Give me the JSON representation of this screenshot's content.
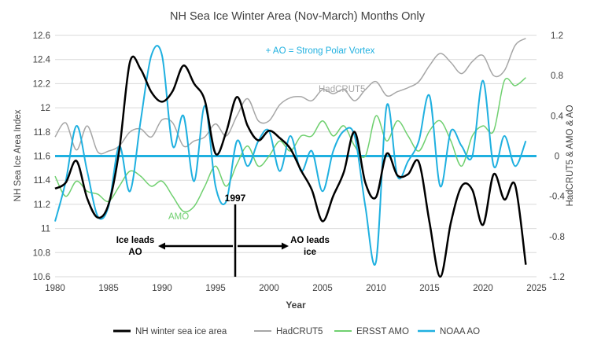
{
  "chart_data": {
    "type": "line",
    "title": "NH Sea Ice Winter Area (Nov-March) Months Only",
    "xlabel": "Year",
    "ylabel_left": "NH Sea Ice Area Index",
    "ylabel_right": "HadCRUT5 & AMO & AO",
    "xlim": [
      1980,
      2025
    ],
    "xticks": [
      1980,
      1985,
      1990,
      1995,
      2000,
      2005,
      2010,
      2015,
      2020,
      2025
    ],
    "ylim_left": [
      10.6,
      12.6
    ],
    "yticks_left": [
      "10.6",
      "10.8",
      "11",
      "11.2",
      "11.4",
      "11.6",
      "11.8",
      "12",
      "12.2",
      "12.4",
      "12.6"
    ],
    "ylim_right": [
      -1.2,
      1.2
    ],
    "yticks_right": [
      "-1.2",
      "-0.8",
      "-0.4",
      "0",
      "0.4",
      "0.8",
      "1.2"
    ],
    "grid": "horizontal",
    "legend_position": "bottom",
    "annotations": {
      "ao_note": "+ AO = Strong Polar Vortex",
      "hadcrut_label": "HadCRUT5",
      "amo_label": "AMO",
      "year_marker": "1997",
      "left_arrow_text": [
        "Ice leads",
        "AO"
      ],
      "right_arrow_text": [
        "AO leads",
        "ice"
      ]
    },
    "series": [
      {
        "name": "NH winter sea ice area",
        "axis": "left",
        "color": "#000000",
        "x": [
          1980,
          1981,
          1982,
          1983,
          1984,
          1985,
          1986,
          1987,
          1988,
          1989,
          1990,
          1991,
          1992,
          1993,
          1994,
          1995,
          1996,
          1997,
          1998,
          1999,
          2000,
          2001,
          2002,
          2003,
          2004,
          2005,
          2006,
          2007,
          2008,
          2009,
          2010,
          2011,
          2012,
          2013,
          2014,
          2015,
          2016,
          2017,
          2018,
          2019,
          2020,
          2021,
          2022,
          2023,
          2024
        ],
        "y": [
          11.33,
          11.38,
          11.56,
          11.25,
          11.09,
          11.2,
          11.65,
          12.38,
          12.32,
          12.13,
          12.05,
          12.14,
          12.35,
          12.2,
          12.06,
          11.62,
          11.8,
          12.09,
          11.85,
          11.73,
          11.81,
          11.75,
          11.66,
          11.48,
          11.32,
          11.06,
          11.27,
          11.47,
          11.8,
          11.38,
          11.26,
          11.62,
          11.44,
          11.45,
          11.55,
          11.05,
          10.56,
          11.05,
          11.35,
          11.32,
          11.03,
          11.45,
          11.24,
          11.36,
          10.7
        ]
      },
      {
        "name": "HadCRUT5",
        "axis": "right",
        "color": "#a6a6a6",
        "x": [
          1980,
          1981,
          1982,
          1983,
          1984,
          1985,
          1986,
          1987,
          1988,
          1989,
          1990,
          1991,
          1992,
          1993,
          1994,
          1995,
          1996,
          1997,
          1998,
          1999,
          2000,
          2001,
          2002,
          2003,
          2004,
          2005,
          2006,
          2007,
          2008,
          2009,
          2010,
          2011,
          2012,
          2013,
          2014,
          2015,
          2016,
          2017,
          2018,
          2019,
          2020,
          2021,
          2022,
          2023,
          2024
        ],
        "y": [
          0.19,
          0.33,
          0.06,
          0.3,
          0.04,
          0.05,
          0.1,
          0.24,
          0.27,
          0.19,
          0.36,
          0.33,
          0.1,
          0.15,
          0.19,
          0.32,
          0.2,
          0.4,
          0.57,
          0.35,
          0.35,
          0.51,
          0.58,
          0.59,
          0.55,
          0.66,
          0.62,
          0.66,
          0.55,
          0.66,
          0.74,
          0.6,
          0.64,
          0.68,
          0.74,
          0.9,
          1.02,
          0.93,
          0.82,
          0.94,
          1.0,
          0.8,
          0.85,
          1.1,
          1.17
        ]
      },
      {
        "name": "ERSST AMO",
        "axis": "right",
        "color": "#70d070",
        "x": [
          1980,
          1981,
          1982,
          1983,
          1984,
          1985,
          1986,
          1987,
          1988,
          1989,
          1990,
          1991,
          1992,
          1993,
          1994,
          1995,
          1996,
          1997,
          1998,
          1999,
          2000,
          2001,
          2002,
          2003,
          2004,
          2005,
          2006,
          2007,
          2008,
          2009,
          2010,
          2011,
          2012,
          2013,
          2014,
          2015,
          2016,
          2017,
          2018,
          2019,
          2020,
          2021,
          2022,
          2023,
          2024
        ],
        "y": [
          -0.2,
          -0.4,
          -0.25,
          -0.35,
          -0.38,
          -0.45,
          -0.3,
          -0.15,
          -0.2,
          -0.3,
          -0.25,
          -0.4,
          -0.55,
          -0.5,
          -0.3,
          -0.1,
          -0.3,
          -0.08,
          0.1,
          -0.1,
          0.0,
          0.15,
          0.05,
          0.2,
          0.2,
          0.35,
          0.2,
          0.3,
          0.1,
          0.0,
          0.4,
          0.15,
          0.35,
          0.2,
          0.05,
          0.25,
          0.35,
          0.15,
          -0.1,
          0.2,
          0.3,
          0.25,
          0.75,
          0.7,
          0.78
        ]
      },
      {
        "name": "NOAA AO",
        "axis": "right",
        "color": "#1fb0e0",
        "x": [
          1980,
          1981,
          1982,
          1983,
          1984,
          1985,
          1986,
          1987,
          1988,
          1989,
          1990,
          1991,
          1992,
          1993,
          1994,
          1995,
          1996,
          1997,
          1998,
          1999,
          2000,
          2001,
          2002,
          2003,
          2004,
          2005,
          2006,
          2007,
          2008,
          2009,
          2010,
          2011,
          2012,
          2013,
          2014,
          2015,
          2016,
          2017,
          2018,
          2019,
          2020,
          2021,
          2022,
          2023,
          2024
        ],
        "y": [
          -0.65,
          -0.25,
          0.3,
          -0.15,
          -0.6,
          -0.5,
          0.1,
          -0.35,
          0.35,
          1.0,
          1.0,
          0.1,
          0.4,
          -0.25,
          0.5,
          -0.3,
          -0.45,
          0.15,
          -0.1,
          0.15,
          0.25,
          -0.15,
          0.2,
          -0.15,
          0.05,
          -0.35,
          0.05,
          0.25,
          0.2,
          -0.5,
          -1.05,
          0.5,
          -0.2,
          -0.05,
          0.15,
          0.6,
          -0.3,
          0.25,
          0.1,
          0.0,
          0.75,
          -0.1,
          0.2,
          -0.1,
          0.15
        ]
      }
    ],
    "zero_line": {
      "value": 0,
      "axis": "right",
      "color": "#1fb0e0"
    }
  }
}
